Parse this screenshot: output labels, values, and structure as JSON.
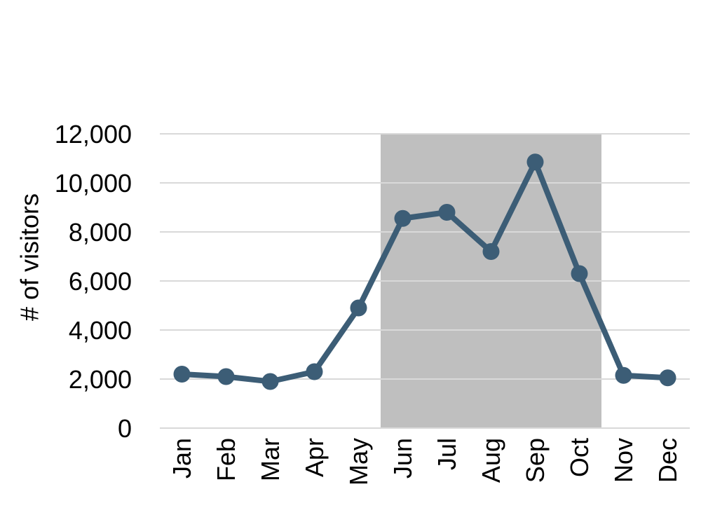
{
  "chart_data": {
    "type": "line",
    "title": "",
    "xlabel": "",
    "ylabel": "# of visitors",
    "categories": [
      "Jan",
      "Feb",
      "Mar",
      "Apr",
      "May",
      "Jun",
      "Jul",
      "Aug",
      "Sep",
      "Oct",
      "Nov",
      "Dec"
    ],
    "series": [
      {
        "values": [
          2200,
          2100,
          1900,
          2300,
          4900,
          8550,
          8800,
          7200,
          10850,
          6300,
          2150,
          2050
        ]
      }
    ],
    "ylim": [
      0,
      12000
    ],
    "yticks": [
      0,
      2000,
      4000,
      6000,
      8000,
      10000,
      12000
    ],
    "ytick_labels": [
      "0",
      "2,000",
      "4,000",
      "6,000",
      "8,000",
      "10,000",
      "12,000"
    ],
    "grid": true,
    "legend": "none",
    "highlight_region": {
      "from": "Jun",
      "to": "Oct"
    },
    "colors": {
      "line": "#3c5d76",
      "highlight": "#bfbfbf",
      "grid": "#d9d9d9"
    }
  }
}
